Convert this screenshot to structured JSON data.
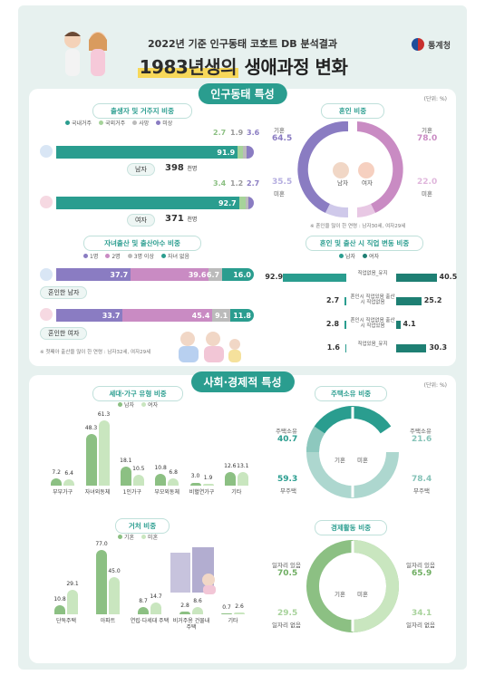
{
  "header": {
    "subtitle": "2022년 기준 인구동태 코호트 DB 분석결과",
    "title_highlight": "1983년생의",
    "title_rest": "생애과정 변화",
    "agency": "통계청"
  },
  "colors": {
    "teal": "#2a9d8f",
    "green": "#a6d39a",
    "purple": "#8a7cc2",
    "pink": "#c98bc3",
    "grayblue": "#a4a9c7",
    "dark": "#333333"
  },
  "section1": {
    "title": "인구동태 특성",
    "unit": "(단위: %)",
    "birth_residence": {
      "subtitle": "출생자 및 거주지 비중",
      "legend": [
        "국내거주",
        "국외거주",
        "사망",
        "미상"
      ],
      "male": {
        "values": [
          "91.9",
          "2.7",
          "1.9",
          "3.6"
        ],
        "shares": [
          91.9,
          2.7,
          1.9,
          3.6
        ],
        "label": "남자",
        "count": "398",
        "count_unit": "천명"
      },
      "female": {
        "values": [
          "92.7",
          "3.4",
          "1.2",
          "2.7"
        ],
        "shares": [
          92.7,
          3.4,
          1.2,
          2.7
        ],
        "label": "여자",
        "count": "371",
        "count_unit": "천명"
      }
    },
    "marriage": {
      "subtitle": "혼인 비중",
      "male": {
        "label": "남자",
        "married_label": "기혼",
        "married": "64.5",
        "single_label": "미혼",
        "single": "35.5"
      },
      "female": {
        "label": "여자",
        "married_label": "기혼",
        "married": "78.0",
        "single_label": "미혼",
        "single": "22.0"
      },
      "note": "※ 혼인을 많이 한 연령 : 남자30세, 여자29세"
    },
    "children": {
      "subtitle": "자녀출산 및 출산아수 비중",
      "legend": [
        "1명",
        "2명",
        "3명 이상",
        "자녀 없음"
      ],
      "male": {
        "label": "혼인한 남자",
        "values": [
          "37.7",
          "39.6",
          "6.7",
          "16.0"
        ],
        "shares": [
          37.7,
          39.6,
          6.7,
          16.0
        ]
      },
      "female": {
        "label": "혼인한 여자",
        "values": [
          "33.7",
          "45.4",
          "9.1",
          "11.8"
        ],
        "shares": [
          33.7,
          45.4,
          9.1,
          11.8
        ]
      },
      "note": "※ 첫째아 출산을 많이 한 연령 : 남자32세, 여자29세"
    },
    "job_change": {
      "subtitle": "혼인 및 출산 시 직업 변동 비중",
      "legend": [
        "남자",
        "여자"
      ],
      "rows": [
        {
          "label": "직업없음_유지",
          "male": "92.9",
          "female": "40.5"
        },
        {
          "label": "혼인시 직업있음 출산시 직업없음",
          "male": "2.7",
          "female": "25.2"
        },
        {
          "label": "혼인시 직업없음 출산시 직업있음",
          "male": "2.8",
          "female": "4.1"
        },
        {
          "label": "직업있음_유지",
          "male": "1.6",
          "female": "30.3"
        }
      ]
    }
  },
  "section2": {
    "title": "사회·경제적 특성",
    "unit": "(단위: %)",
    "household": {
      "subtitle": "세대·가구 유형 비중",
      "legend": [
        "남자",
        "여자"
      ],
      "categories": [
        "부부가구",
        "자녀외동체",
        "1인가구",
        "부모외동체",
        "비혈연가구",
        "기타"
      ],
      "male": [
        "7.2",
        "48.3",
        "18.1",
        "10.8",
        "3.0",
        "12.6"
      ],
      "female": [
        "6.4",
        "61.3",
        "10.5",
        "6.8",
        "1.9",
        "13.1"
      ]
    },
    "residence": {
      "subtitle": "거처 비중",
      "legend": [
        "기혼",
        "미혼"
      ],
      "categories": [
        "단독주택",
        "아파트",
        "연립·다세대 주택",
        "비거주용 건물내주택",
        "기타"
      ],
      "married": [
        "10.8",
        "77.0",
        "8.7",
        "2.8",
        "0.7"
      ],
      "single": [
        "29.1",
        "45.0",
        "14.7",
        "8.6",
        "2.6"
      ]
    },
    "housing": {
      "subtitle": "주택소유 비중",
      "married": {
        "own_label": "주택소유",
        "own": "40.7",
        "none_label": "무주택",
        "none": "59.3",
        "center": "기혼"
      },
      "single": {
        "own_label": "주택소유",
        "own": "21.6",
        "none_label": "무주택",
        "none": "78.4",
        "center": "미혼"
      }
    },
    "economic": {
      "subtitle": "경제활동 비중",
      "married": {
        "job_label": "일자리 있음",
        "job": "70.5",
        "nojob_label": "일자리 없음",
        "nojob": "29.5",
        "center": "기혼"
      },
      "single": {
        "job_label": "일자리 있음",
        "job": "65.9",
        "nojob_label": "일자리 없음",
        "nojob": "34.1",
        "center": "미혼"
      }
    }
  }
}
